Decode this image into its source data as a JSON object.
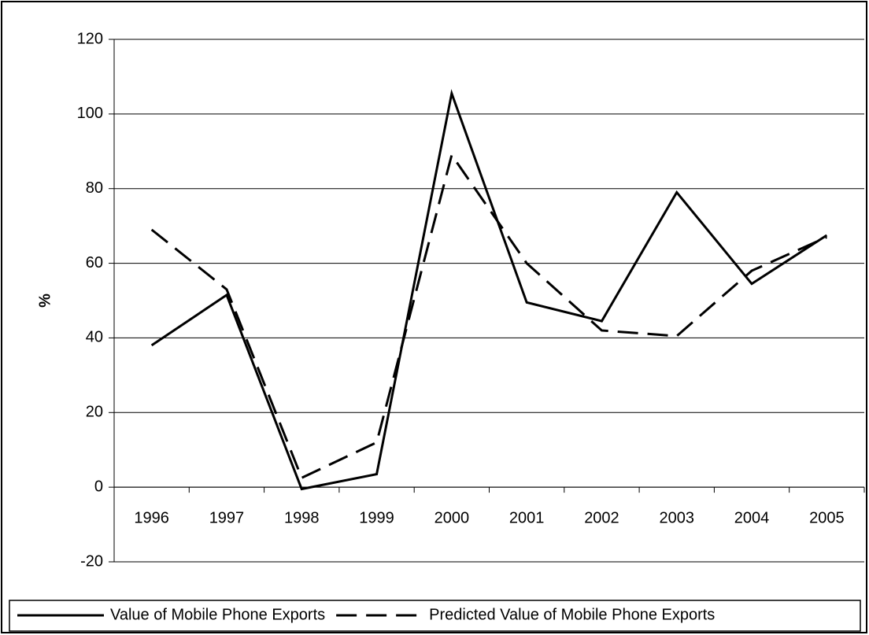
{
  "chart_data": {
    "type": "line",
    "y_label": "%",
    "categories": [
      "1996",
      "1997",
      "1998",
      "1999",
      "2000",
      "2001",
      "2002",
      "2003",
      "2004",
      "2005"
    ],
    "series": [
      {
        "name": "Value of Mobile Phone Exports",
        "color": "#000000",
        "line_style": "solid",
        "values": [
          38,
          51.5,
          -0.5,
          3.5,
          105.5,
          49.5,
          44.5,
          79,
          54.5,
          67.5
        ]
      },
      {
        "name": "Predicted Value of Mobile Phone Exports",
        "color": "#000000",
        "line_style": "dashed",
        "values": [
          69,
          53,
          2.5,
          12,
          89,
          60,
          42,
          40.5,
          58,
          67
        ]
      }
    ],
    "ylim": [
      -20,
      120
    ],
    "yticks": [
      -20,
      0,
      20,
      40,
      60,
      80,
      100,
      120
    ],
    "grid": true,
    "legend": "bottom"
  }
}
